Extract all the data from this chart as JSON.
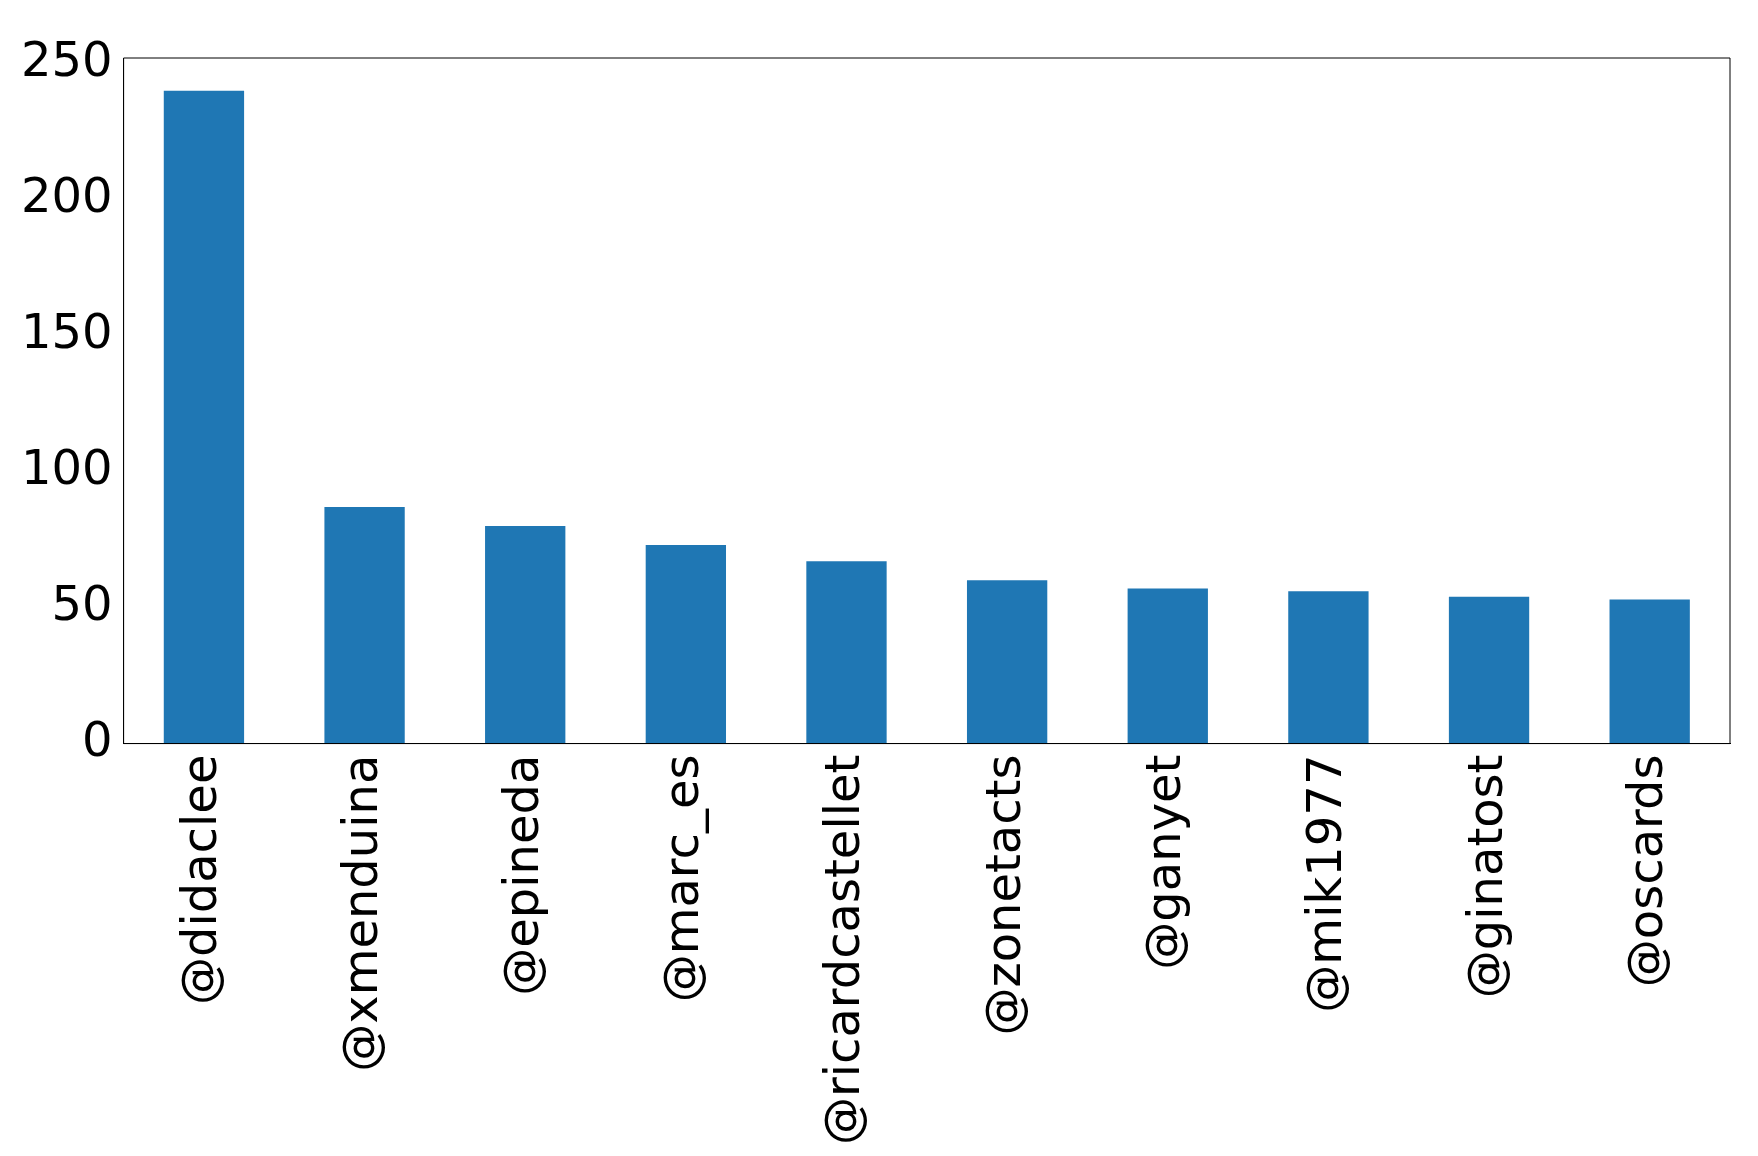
{
  "chart_data": {
    "type": "bar",
    "categories": [
      "@didaclee",
      "@xmenduina",
      "@epineda",
      "@marc_es",
      "@ricardcastellet",
      "@zonetacts",
      "@ganyet",
      "@mik1977",
      "@ginatost",
      "@oscards"
    ],
    "values": [
      240,
      87,
      80,
      73,
      67,
      60,
      57,
      56,
      54,
      53
    ],
    "color": "#1f77b4",
    "ylim": [
      0,
      252
    ],
    "yticks": [
      0,
      50,
      100,
      150,
      200,
      250
    ],
    "grid": false,
    "legend": false
  }
}
